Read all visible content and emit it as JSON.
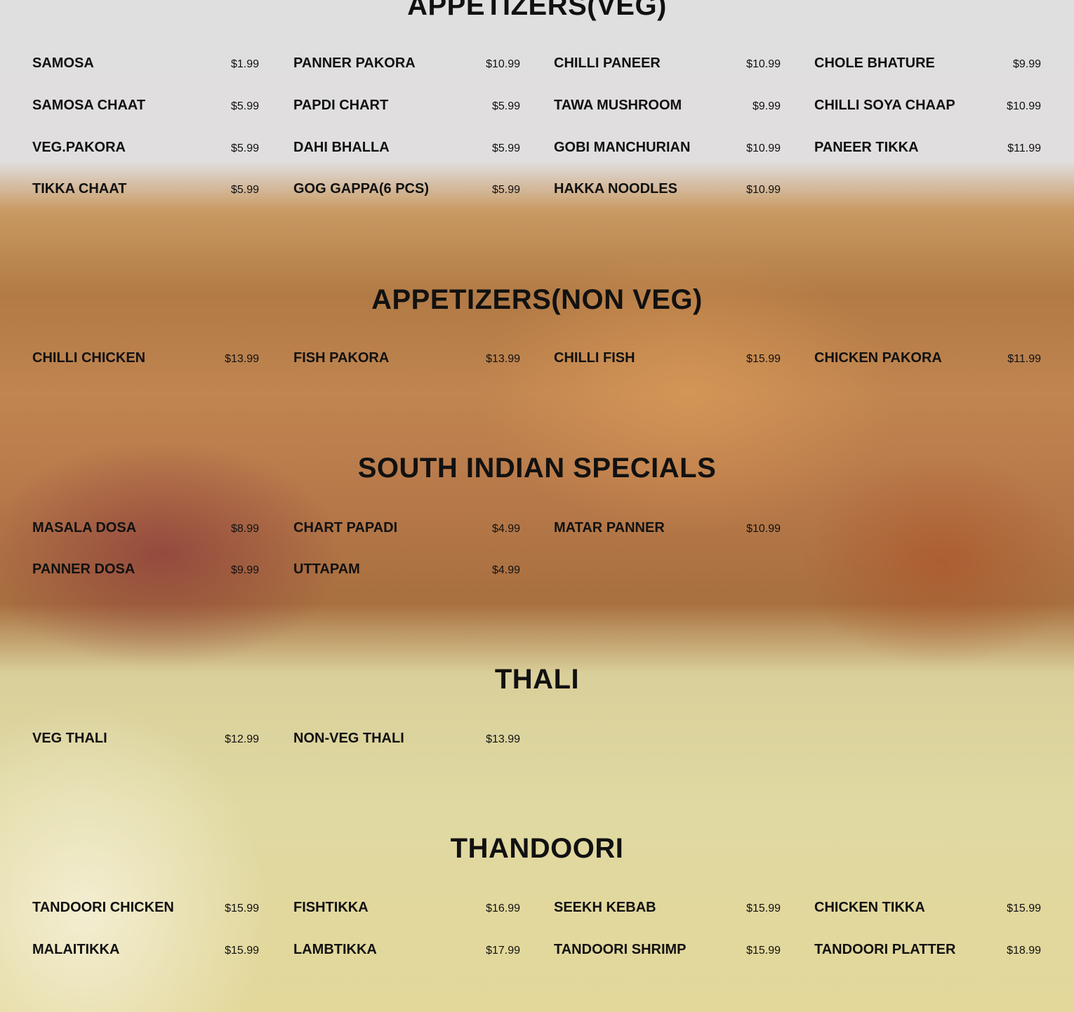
{
  "sections": [
    {
      "title": "APPETIZERS(VEG)",
      "items": [
        {
          "name": "SAMOSA",
          "price": "$1.99"
        },
        {
          "name": "PANNER PAKORA",
          "price": "$10.99"
        },
        {
          "name": "CHILLI PANEER",
          "price": "$10.99"
        },
        {
          "name": "CHOLE BHATURE",
          "price": "$9.99"
        },
        {
          "name": "SAMOSA CHAAT",
          "price": "$5.99"
        },
        {
          "name": "PAPDI CHART",
          "price": "$5.99"
        },
        {
          "name": "TAWA MUSHROOM",
          "price": "$9.99"
        },
        {
          "name": "CHILLI SOYA CHAAP",
          "price": "$10.99"
        },
        {
          "name": "VEG.PAKORA",
          "price": "$5.99"
        },
        {
          "name": "DAHI BHALLA",
          "price": "$5.99"
        },
        {
          "name": "GOBI MANCHURIAN",
          "price": "$10.99"
        },
        {
          "name": "PANEER TIKKA",
          "price": "$11.99"
        },
        {
          "name": "TIKKA CHAAT",
          "price": "$5.99"
        },
        {
          "name": "GOG GAPPA(6 PCS)",
          "price": "$5.99"
        },
        {
          "name": "HAKKA NOODLES",
          "price": "$10.99"
        }
      ]
    },
    {
      "title": "APPETIZERS(NON VEG)",
      "items": [
        {
          "name": "CHILLI CHICKEN",
          "price": "$13.99"
        },
        {
          "name": "FISH PAKORA",
          "price": "$13.99"
        },
        {
          "name": "CHILLI FISH",
          "price": "$15.99"
        },
        {
          "name": "CHICKEN PAKORA",
          "price": "$11.99"
        }
      ]
    },
    {
      "title": "SOUTH INDIAN SPECIALS",
      "items": [
        {
          "name": "MASALA DOSA",
          "price": "$8.99"
        },
        {
          "name": "CHART PAPADI",
          "price": "$4.99"
        },
        {
          "name": "MATAR PANNER",
          "price": "$10.99"
        },
        {
          "name": "PANNER DOSA",
          "price": "$9.99"
        },
        {
          "name": "UTTAPAM",
          "price": "$4.99"
        }
      ]
    },
    {
      "title": "THALI",
      "items": [
        {
          "name": "VEG THALI",
          "price": "$12.99"
        },
        {
          "name": "NON-VEG THALI",
          "price": "$13.99"
        }
      ]
    },
    {
      "title": "THANDOORI",
      "items": [
        {
          "name": "TANDOORI CHICKEN",
          "price": "$15.99"
        },
        {
          "name": "FISHTIKKA",
          "price": "$16.99"
        },
        {
          "name": "SEEKH KEBAB",
          "price": "$15.99"
        },
        {
          "name": "CHICKEN TIKKA",
          "price": "$15.99"
        },
        {
          "name": "MALAITIKKA",
          "price": "$15.99"
        },
        {
          "name": "LAMBTIKKA",
          "price": "$17.99"
        },
        {
          "name": "TANDOORI SHRIMP",
          "price": "$15.99"
        },
        {
          "name": "TANDOORI PLATTER",
          "price": "$18.99"
        }
      ]
    }
  ]
}
